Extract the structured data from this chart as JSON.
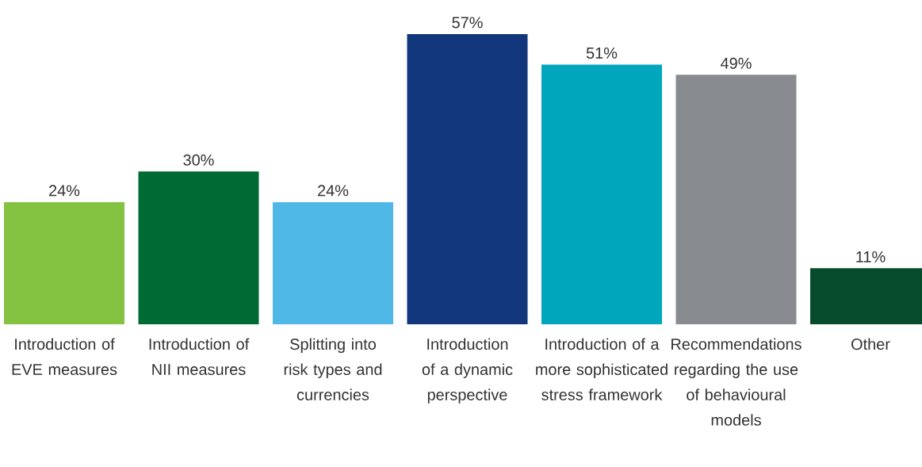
{
  "chart_data": {
    "type": "bar",
    "categories": [
      "Introduction of EVE measures",
      "Introduction of NII measures",
      "Splitting into risk types and currencies",
      "Introduction of a dynamic perspective",
      "Introduction of a more sophisticated stress framework",
      "Recommendations regarding the use of behavioural models",
      "Other"
    ],
    "values": [
      24,
      30,
      24,
      57,
      51,
      49,
      11
    ],
    "value_labels": [
      "24%",
      "30%",
      "24%",
      "57%",
      "51%",
      "49%",
      "11%"
    ],
    "colors": [
      "#84c341",
      "#006a35",
      "#4fb8e6",
      "#12367c",
      "#00a6bb",
      "#888b90",
      "#064b2b"
    ]
  }
}
